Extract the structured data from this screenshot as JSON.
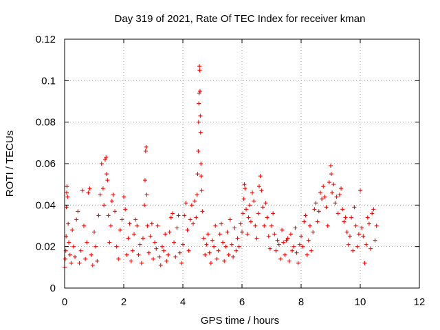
{
  "chart_data": {
    "type": "scatter",
    "title": "Day 319 of 2021, Rate Of TEC Index for receiver kman",
    "xlabel": "GPS time / hours",
    "ylabel": "ROTI / TECUs",
    "xlim": [
      0,
      12
    ],
    "ylim": [
      0,
      0.12
    ],
    "xticks": [
      0,
      2,
      4,
      6,
      8,
      10,
      12
    ],
    "yticks": [
      0,
      0.02,
      0.04,
      0.06,
      0.08,
      0.1,
      0.12
    ],
    "xtick_labels": [
      "0",
      "2",
      "4",
      "6",
      "8",
      "10",
      "12"
    ],
    "ytick_labels": [
      "0",
      "0.02",
      "0.04",
      "0.06",
      "0.08",
      "0.1",
      "0.12"
    ],
    "grid": true,
    "marker": "+",
    "color": "#ff0000",
    "data_x_range": [
      0,
      10.55
    ],
    "series": [
      {
        "name": "ROTI",
        "points": [
          [
            0.0,
            0.01
          ],
          [
            0.02,
            0.014
          ],
          [
            0.04,
            0.018
          ],
          [
            0.05,
            0.025
          ],
          [
            0.06,
            0.039
          ],
          [
            0.07,
            0.046
          ],
          [
            0.08,
            0.049
          ],
          [
            0.1,
            0.044
          ],
          [
            0.12,
            0.031
          ],
          [
            0.14,
            0.022
          ],
          [
            0.18,
            0.016
          ],
          [
            0.22,
            0.012
          ],
          [
            0.26,
            0.028
          ],
          [
            0.3,
            0.02
          ],
          [
            0.35,
            0.015
          ],
          [
            0.4,
            0.033
          ],
          [
            0.45,
            0.037
          ],
          [
            0.5,
            0.012
          ],
          [
            0.55,
            0.018
          ],
          [
            0.6,
            0.047
          ],
          [
            0.65,
            0.03
          ],
          [
            0.7,
            0.014
          ],
          [
            0.75,
            0.022
          ],
          [
            0.8,
            0.046
          ],
          [
            0.85,
            0.048
          ],
          [
            0.9,
            0.016
          ],
          [
            0.95,
            0.011
          ],
          [
            1.0,
            0.027
          ],
          [
            1.05,
            0.02
          ],
          [
            1.1,
            0.013
          ],
          [
            1.15,
            0.035
          ],
          [
            1.2,
            0.045
          ],
          [
            1.25,
            0.06
          ],
          [
            1.3,
            0.048
          ],
          [
            1.33,
            0.04
          ],
          [
            1.37,
            0.062
          ],
          [
            1.4,
            0.063
          ],
          [
            1.42,
            0.055
          ],
          [
            1.45,
            0.052
          ],
          [
            1.48,
            0.035
          ],
          [
            1.52,
            0.022
          ],
          [
            1.56,
            0.03
          ],
          [
            1.6,
            0.042
          ],
          [
            1.64,
            0.045
          ],
          [
            1.7,
            0.037
          ],
          [
            1.76,
            0.02
          ],
          [
            1.82,
            0.014
          ],
          [
            1.88,
            0.028
          ],
          [
            1.94,
            0.033
          ],
          [
            2.0,
            0.044
          ],
          [
            2.05,
            0.038
          ],
          [
            2.1,
            0.016
          ],
          [
            2.15,
            0.024
          ],
          [
            2.2,
            0.031
          ],
          [
            2.25,
            0.013
          ],
          [
            2.3,
            0.018
          ],
          [
            2.35,
            0.026
          ],
          [
            2.4,
            0.033
          ],
          [
            2.45,
            0.03
          ],
          [
            2.5,
            0.016
          ],
          [
            2.55,
            0.021
          ],
          [
            2.6,
            0.012
          ],
          [
            2.65,
            0.024
          ],
          [
            2.7,
            0.04
          ],
          [
            2.72,
            0.052
          ],
          [
            2.74,
            0.066
          ],
          [
            2.76,
            0.068
          ],
          [
            2.78,
            0.045
          ],
          [
            2.8,
            0.03
          ],
          [
            2.85,
            0.017
          ],
          [
            2.9,
            0.025
          ],
          [
            2.95,
            0.031
          ],
          [
            3.0,
            0.014
          ],
          [
            3.05,
            0.022
          ],
          [
            3.1,
            0.019
          ],
          [
            3.15,
            0.03
          ],
          [
            3.2,
            0.015
          ],
          [
            3.25,
            0.011
          ],
          [
            3.3,
            0.02
          ],
          [
            3.35,
            0.018
          ],
          [
            3.4,
            0.026
          ],
          [
            3.45,
            0.013
          ],
          [
            3.5,
            0.016
          ],
          [
            3.55,
            0.027
          ],
          [
            3.6,
            0.034
          ],
          [
            3.65,
            0.036
          ],
          [
            3.7,
            0.022
          ],
          [
            3.75,
            0.015
          ],
          [
            3.8,
            0.029
          ],
          [
            3.85,
            0.035
          ],
          [
            3.9,
            0.017
          ],
          [
            3.95,
            0.012
          ],
          [
            4.0,
            0.021
          ],
          [
            4.05,
            0.035
          ],
          [
            4.1,
            0.041
          ],
          [
            4.15,
            0.028
          ],
          [
            4.2,
            0.018
          ],
          [
            4.25,
            0.033
          ],
          [
            4.3,
            0.04
          ],
          [
            4.35,
            0.031
          ],
          [
            4.4,
            0.042
          ],
          [
            4.45,
            0.034
          ],
          [
            4.48,
            0.045
          ],
          [
            4.5,
            0.055
          ],
          [
            4.52,
            0.066
          ],
          [
            4.53,
            0.08
          ],
          [
            4.54,
            0.089
          ],
          [
            4.55,
            0.094
          ],
          [
            4.56,
            0.107
          ],
          [
            4.57,
            0.105
          ],
          [
            4.58,
            0.095
          ],
          [
            4.59,
            0.083
          ],
          [
            4.6,
            0.075
          ],
          [
            4.61,
            0.06
          ],
          [
            4.62,
            0.054
          ],
          [
            4.64,
            0.047
          ],
          [
            4.66,
            0.037
          ],
          [
            4.7,
            0.024
          ],
          [
            4.75,
            0.016
          ],
          [
            4.8,
            0.021
          ],
          [
            4.85,
            0.026
          ],
          [
            4.9,
            0.017
          ],
          [
            4.95,
            0.012
          ],
          [
            5.0,
            0.023
          ],
          [
            5.05,
            0.02
          ],
          [
            5.1,
            0.03
          ],
          [
            5.15,
            0.014
          ],
          [
            5.2,
            0.018
          ],
          [
            5.25,
            0.026
          ],
          [
            5.3,
            0.031
          ],
          [
            5.35,
            0.022
          ],
          [
            5.4,
            0.013
          ],
          [
            5.45,
            0.02
          ],
          [
            5.5,
            0.027
          ],
          [
            5.55,
            0.016
          ],
          [
            5.6,
            0.033
          ],
          [
            5.65,
            0.021
          ],
          [
            5.7,
            0.015
          ],
          [
            5.75,
            0.029
          ],
          [
            5.8,
            0.018
          ],
          [
            5.85,
            0.024
          ],
          [
            5.9,
            0.02
          ],
          [
            5.95,
            0.031
          ],
          [
            6.0,
            0.027
          ],
          [
            6.03,
            0.036
          ],
          [
            6.06,
            0.043
          ],
          [
            6.08,
            0.05
          ],
          [
            6.1,
            0.048
          ],
          [
            6.14,
            0.038
          ],
          [
            6.18,
            0.026
          ],
          [
            6.22,
            0.034
          ],
          [
            6.26,
            0.04
          ],
          [
            6.3,
            0.032
          ],
          [
            6.35,
            0.046
          ],
          [
            6.4,
            0.042
          ],
          [
            6.45,
            0.03
          ],
          [
            6.5,
            0.024
          ],
          [
            6.55,
            0.036
          ],
          [
            6.58,
            0.049
          ],
          [
            6.62,
            0.054
          ],
          [
            6.66,
            0.047
          ],
          [
            6.7,
            0.039
          ],
          [
            6.75,
            0.03
          ],
          [
            6.8,
            0.041
          ],
          [
            6.85,
            0.034
          ],
          [
            6.9,
            0.025
          ],
          [
            6.95,
            0.019
          ],
          [
            7.0,
            0.03
          ],
          [
            7.05,
            0.036
          ],
          [
            7.1,
            0.026
          ],
          [
            7.15,
            0.018
          ],
          [
            7.2,
            0.023
          ],
          [
            7.25,
            0.021
          ],
          [
            7.3,
            0.014
          ],
          [
            7.35,
            0.028
          ],
          [
            7.4,
            0.022
          ],
          [
            7.45,
            0.016
          ],
          [
            7.5,
            0.023
          ],
          [
            7.55,
            0.024
          ],
          [
            7.6,
            0.013
          ],
          [
            7.65,
            0.026
          ],
          [
            7.7,
            0.018
          ],
          [
            7.75,
            0.02
          ],
          [
            7.8,
            0.029
          ],
          [
            7.85,
            0.017
          ],
          [
            7.9,
            0.012
          ],
          [
            7.95,
            0.021
          ],
          [
            8.0,
            0.025
          ],
          [
            8.05,
            0.02
          ],
          [
            8.1,
            0.032
          ],
          [
            8.15,
            0.035
          ],
          [
            8.2,
            0.016
          ],
          [
            8.25,
            0.023
          ],
          [
            8.3,
            0.03
          ],
          [
            8.35,
            0.018
          ],
          [
            8.4,
            0.027
          ],
          [
            8.45,
            0.038
          ],
          [
            8.5,
            0.041
          ],
          [
            8.55,
            0.032
          ],
          [
            8.6,
            0.037
          ],
          [
            8.65,
            0.046
          ],
          [
            8.7,
            0.043
          ],
          [
            8.75,
            0.049
          ],
          [
            8.8,
            0.044
          ],
          [
            8.85,
            0.039
          ],
          [
            8.9,
            0.03
          ],
          [
            8.95,
            0.051
          ],
          [
            9.0,
            0.059
          ],
          [
            9.02,
            0.055
          ],
          [
            9.05,
            0.046
          ],
          [
            9.1,
            0.05
          ],
          [
            9.15,
            0.041
          ],
          [
            9.2,
            0.044
          ],
          [
            9.25,
            0.036
          ],
          [
            9.3,
            0.045
          ],
          [
            9.35,
            0.048
          ],
          [
            9.4,
            0.038
          ],
          [
            9.45,
            0.032
          ],
          [
            9.5,
            0.034
          ],
          [
            9.55,
            0.027
          ],
          [
            9.6,
            0.021
          ],
          [
            9.65,
            0.025
          ],
          [
            9.7,
            0.034
          ],
          [
            9.75,
            0.018
          ],
          [
            9.8,
            0.039
          ],
          [
            9.85,
            0.03
          ],
          [
            9.9,
            0.02
          ],
          [
            9.95,
            0.026
          ],
          [
            10.0,
            0.047
          ],
          [
            10.05,
            0.029
          ],
          [
            10.1,
            0.025
          ],
          [
            10.15,
            0.012
          ],
          [
            10.2,
            0.021
          ],
          [
            10.25,
            0.034
          ],
          [
            10.3,
            0.031
          ],
          [
            10.35,
            0.019
          ],
          [
            10.4,
            0.036
          ],
          [
            10.45,
            0.038
          ],
          [
            10.5,
            0.023
          ],
          [
            10.55,
            0.03
          ]
        ]
      }
    ]
  }
}
